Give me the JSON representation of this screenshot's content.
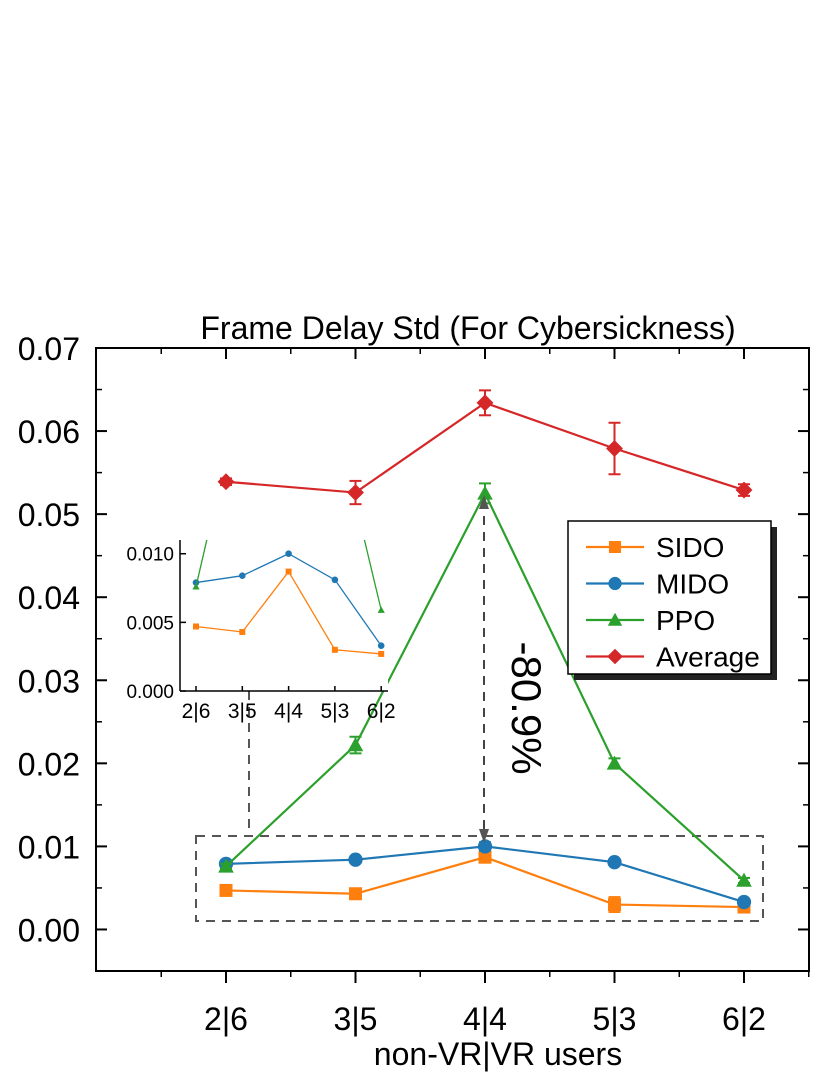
{
  "chart_data": {
    "type": "line",
    "title": "Frame Delay Std (For Cybersickness)",
    "xlabel": "non-VR|VR users",
    "ylabel": "",
    "categories": [
      "2|6",
      "3|5",
      "4|4",
      "5|3",
      "6|2"
    ],
    "ylim": [
      -0.005,
      0.07
    ],
    "yticks": [
      "0.00",
      "0.01",
      "0.02",
      "0.03",
      "0.04",
      "0.05",
      "0.06",
      "0.07"
    ],
    "ytick_values": [
      0.0,
      0.01,
      0.02,
      0.03,
      0.04,
      0.05,
      0.06,
      0.07
    ],
    "series": [
      {
        "name": "SIDO",
        "color": "#ff7f0e",
        "marker": "square",
        "values": [
          0.0047,
          0.0043,
          0.0087,
          0.003,
          0.0027
        ],
        "errors": [
          0.0003,
          0.0004,
          0.0006,
          0.0009,
          0.0003
        ]
      },
      {
        "name": "MIDO",
        "color": "#1f77b4",
        "marker": "circle",
        "values": [
          0.0079,
          0.0084,
          0.01,
          0.0081,
          0.0033
        ],
        "errors": [
          0.0003,
          0.0003,
          0.0005,
          0.0003,
          0.0002
        ]
      },
      {
        "name": "PPO",
        "color": "#2ca02c",
        "marker": "triangle",
        "values": [
          0.0076,
          0.0222,
          0.0525,
          0.02,
          0.0059
        ],
        "errors": [
          0.0003,
          0.001,
          0.0012,
          0.0006,
          0.0003
        ]
      },
      {
        "name": "Average",
        "color": "#d62728",
        "marker": "diamond",
        "values": [
          0.0539,
          0.0526,
          0.0634,
          0.0579,
          0.0529
        ],
        "errors": [
          0.0004,
          0.0014,
          0.0015,
          0.0031,
          0.0007
        ]
      }
    ],
    "legend_position": "right",
    "annotation": {
      "text": "-80.9%",
      "category": "4|4"
    },
    "inset": {
      "yticks": [
        "0.000",
        "0.005",
        "0.010"
      ],
      "ytick_values": [
        0.0,
        0.005,
        0.01
      ],
      "ylim": [
        0.0,
        0.011
      ],
      "categories": [
        "2|6",
        "3|5",
        "4|4",
        "5|3",
        "6|2"
      ]
    }
  }
}
